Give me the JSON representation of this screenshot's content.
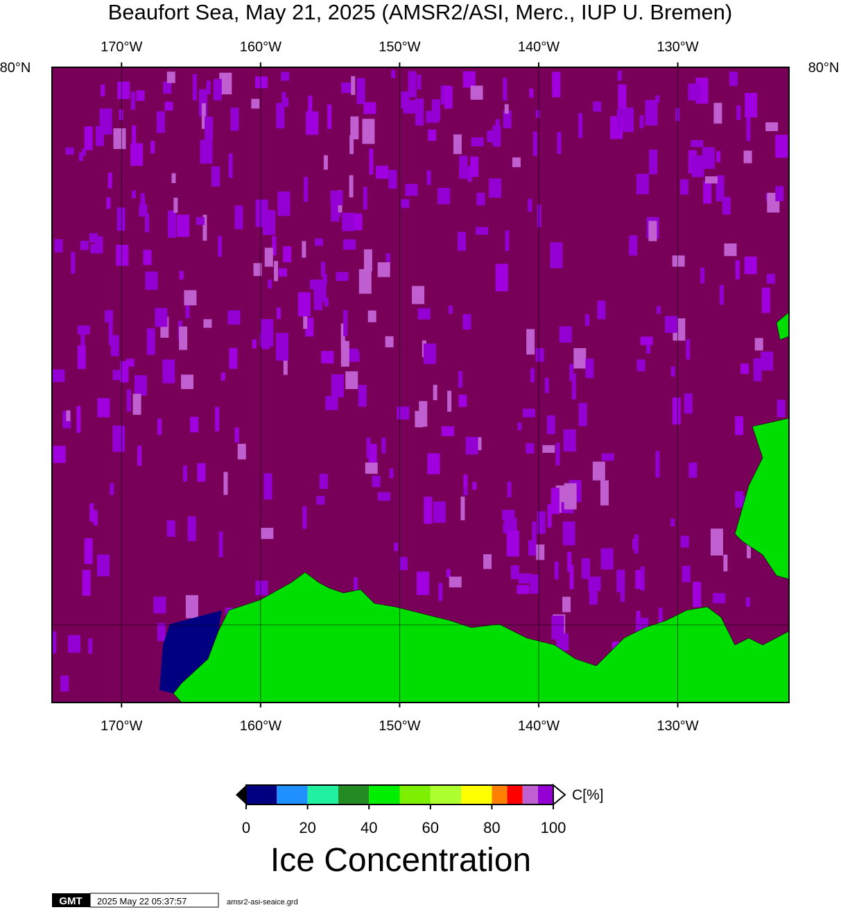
{
  "title": "Beaufort Sea, May 21, 2025 (AMSR2/ASI, Merc., IUP U. Bremen)",
  "map": {
    "lon_range": [
      -175,
      -122
    ],
    "lon_ticks": [
      {
        "value": -170,
        "label": "170°W"
      },
      {
        "value": -160,
        "label": "160°W"
      },
      {
        "value": -150,
        "label": "150°W"
      },
      {
        "value": -140,
        "label": "140°W"
      },
      {
        "value": -130,
        "label": "130°W"
      }
    ],
    "lat_label": "80°N"
  },
  "colorbar": {
    "range": [
      0,
      100
    ],
    "ticks": [
      0,
      20,
      40,
      60,
      80,
      100
    ],
    "unit": "C[%]",
    "label": "Ice Concentration",
    "bounds": [
      0,
      10,
      20,
      30,
      40,
      50,
      60,
      70,
      80,
      85,
      90,
      95,
      100
    ],
    "colors": [
      "#000080",
      "#1e90ff",
      "#20f0a0",
      "#228b22",
      "#00ee00",
      "#7cf000",
      "#adff2f",
      "#ffff00",
      "#ff8000",
      "#ff0000",
      "#c060d0",
      "#9400d3"
    ]
  },
  "footer": {
    "logo": "GMT",
    "timestamp": "2025 May 22 05:37:57",
    "file": "amsr2-asi-seaice.grd"
  }
}
